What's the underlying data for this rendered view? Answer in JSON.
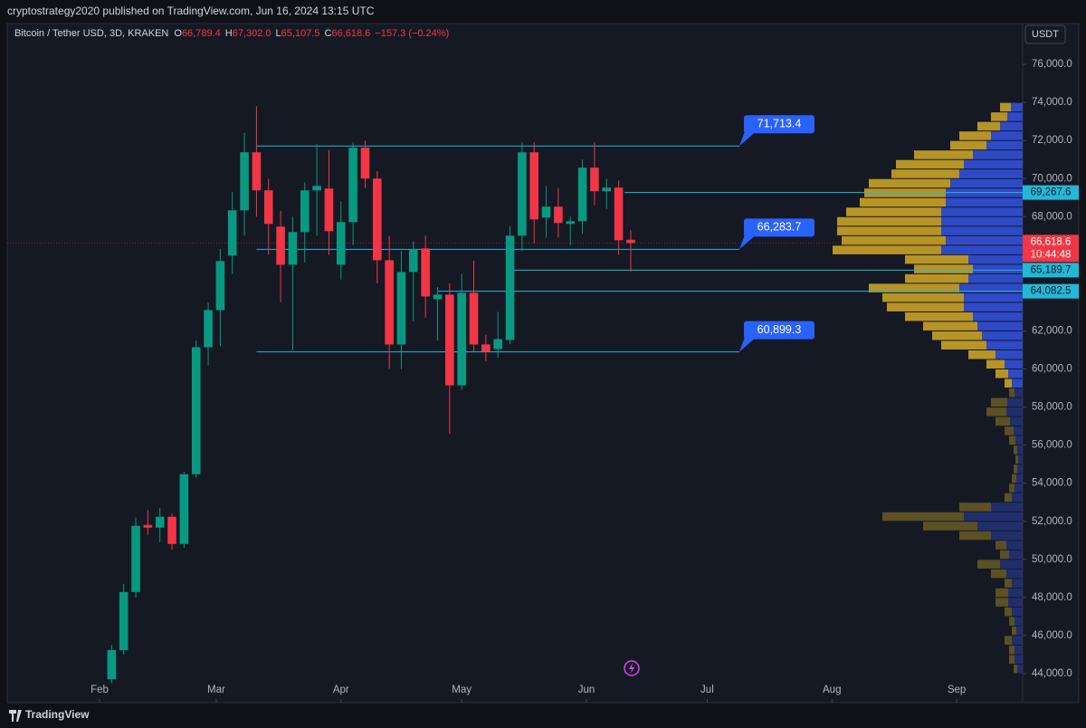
{
  "header": {
    "publisher": "cryptostrategy2020 published on TradingView.com, Jun 16, 2024 13:15 UTC",
    "logo": "TradingView",
    "currency": "USDT"
  },
  "chart_data": {
    "type": "candlestick",
    "legend": {
      "symbol": "Bitcoin / Tether USD, 3D, KRAKEN",
      "fields": [
        {
          "key": "O",
          "value": "66,789.4"
        },
        {
          "key": "H",
          "value": "67,302.0"
        },
        {
          "key": "L",
          "value": "65,107.5"
        },
        {
          "key": "C",
          "value": "66,618.6"
        }
      ],
      "change": "−157.3 (−0.24%)"
    },
    "up_color": "#089981",
    "down_color": "#f23645",
    "x": [
      34,
      37,
      40,
      43,
      46,
      49,
      52,
      55,
      58,
      61,
      64,
      67,
      70,
      73,
      76,
      79,
      82,
      85,
      88,
      91,
      94,
      97,
      100,
      103,
      106,
      109,
      112,
      115,
      118,
      121,
      124,
      127,
      130,
      133,
      136,
      139,
      142,
      145,
      148,
      151,
      154,
      157,
      160,
      163
    ],
    "open": [
      43700,
      45238,
      48286,
      51810,
      51667,
      52238,
      50810,
      54476,
      61143,
      63095,
      65952,
      68333,
      71381,
      69381,
      67476,
      65476,
      67190,
      69381,
      69476,
      65476,
      67714,
      71619,
      70000,
      65714,
      61286,
      65095,
      66333,
      63667,
      63905,
      59143,
      64000,
      61290,
      61048,
      61524,
      67000,
      71381,
      67952,
      68524,
      67619,
      67762,
      70571,
      69333,
      69524,
      66789.4
    ],
    "high": [
      45500,
      48700,
      52200,
      52600,
      52700,
      52400,
      54600,
      61500,
      63500,
      66300,
      69300,
      72400,
      73800,
      70000,
      68300,
      68000,
      69800,
      71800,
      71500,
      68800,
      71900,
      72000,
      70400,
      67000,
      66200,
      66700,
      67000,
      64300,
      64500,
      65000,
      65700,
      61800,
      63000,
      67500,
      71900,
      71900,
      69600,
      69500,
      68000,
      71000,
      71900,
      70000,
      69900,
      67302.0
    ],
    "low": [
      43500,
      45000,
      48000,
      51300,
      50900,
      50500,
      50600,
      54300,
      60200,
      61200,
      65000,
      67000,
      68000,
      66000,
      63500,
      61000,
      65600,
      67000,
      66000,
      64700,
      66500,
      69500,
      64500,
      60000,
      60000,
      62500,
      62700,
      61500,
      56600,
      58900,
      60900,
      60400,
      60600,
      61300,
      66200,
      66600,
      66900,
      66900,
      66500,
      67100,
      68600,
      68400,
      66000,
      65107.5
    ],
    "close": [
      45238,
      48286,
      51762,
      51667,
      52238,
      50810,
      54476,
      61143,
      63095,
      65667,
      68333,
      71381,
      69381,
      67619,
      65476,
      67190,
      69381,
      69619,
      67238,
      67714,
      71619,
      70000,
      65714,
      61286,
      65095,
      66286,
      63810,
      63905,
      59143,
      64000,
      61286,
      60905,
      61571,
      67000,
      71381,
      67857,
      68524,
      67667,
      67762,
      70571,
      69333,
      69524,
      66762,
      66618.6
    ],
    "xlim": [
      8.06,
      260.4
    ],
    "xticks": [
      {
        "value": 31,
        "label": "Feb"
      },
      {
        "value": 60,
        "label": "Mar"
      },
      {
        "value": 91,
        "label": "Apr"
      },
      {
        "value": 121,
        "label": "May"
      },
      {
        "value": 152,
        "label": "Jun"
      },
      {
        "value": 182,
        "label": "Jul"
      },
      {
        "value": 213,
        "label": "Aug"
      },
      {
        "value": 244,
        "label": "Sep"
      }
    ],
    "ylim": [
      42476,
      78143
    ],
    "yticks": [
      {
        "value": 44000,
        "label": "44,000.0"
      },
      {
        "value": 46000,
        "label": "46,000.0"
      },
      {
        "value": 48000,
        "label": "48,000.0"
      },
      {
        "value": 50000,
        "label": "50,000.0"
      },
      {
        "value": 52000,
        "label": "52,000.0"
      },
      {
        "value": 54000,
        "label": "54,000.0"
      },
      {
        "value": 56000,
        "label": "56,000.0"
      },
      {
        "value": 58000,
        "label": "58,000.0"
      },
      {
        "value": 60000,
        "label": "60,000.0"
      },
      {
        "value": 62000,
        "label": "62,000.0"
      },
      {
        "value": 64000,
        "label": "64,000.0"
      },
      {
        "value": 66000,
        "label": "66,000.0"
      },
      {
        "value": 68000,
        "label": "68,000.0"
      },
      {
        "value": 70000,
        "label": "70,000.0"
      },
      {
        "value": 72000,
        "label": "72,000.0"
      },
      {
        "value": 74000,
        "label": "74,000.0"
      },
      {
        "value": 76000,
        "label": "76,000.0"
      }
    ],
    "grid": false,
    "callout_lines": [
      {
        "value": 71713.4,
        "label": "71,713.4",
        "start": 70,
        "end": 190
      },
      {
        "value": 66283.7,
        "label": "66,283.7",
        "start": 70,
        "end": 190
      },
      {
        "value": 60899.3,
        "label": "60,899.3",
        "start": 70,
        "end": 190
      }
    ],
    "callout_color": "#2962ff",
    "line_color": "#22b8d8",
    "axis_lines": [
      {
        "value": 69267.6,
        "label": "69,267.6",
        "start": 161.5
      },
      {
        "value": 65189.7,
        "label": "65,189.7",
        "start": 134
      },
      {
        "value": 64082.5,
        "label": "64,082.5",
        "start": 115
      }
    ],
    "last_price": {
      "value": 66618.6,
      "label": "66,618.6",
      "countdown": "10:44:48"
    },
    "volume_profile": {
      "step": 500,
      "up_color": "#c9a227",
      "down_color": "#3150d8",
      "value_area": [
        59000,
        73500
      ],
      "levels": [
        44000,
        44500,
        45000,
        45500,
        46000,
        46500,
        47000,
        47500,
        48000,
        48500,
        49000,
        49500,
        50000,
        50500,
        51000,
        51500,
        52000,
        52500,
        53000,
        53500,
        54000,
        54500,
        55000,
        55500,
        56000,
        56500,
        57000,
        57500,
        58000,
        58500,
        59000,
        59500,
        60000,
        60500,
        61000,
        61500,
        62000,
        62500,
        63000,
        63500,
        64000,
        64500,
        65000,
        65500,
        66000,
        66500,
        67000,
        67500,
        68000,
        68500,
        69000,
        69500,
        70000,
        70500,
        71000,
        71500,
        72000,
        72500,
        73000,
        73500
      ],
      "up": [
        4,
        6,
        6,
        8,
        5,
        6,
        8,
        14,
        14,
        8,
        17,
        25,
        10,
        12,
        35,
        60,
        90,
        35,
        8,
        6,
        5,
        4,
        3,
        4,
        7,
        10,
        16,
        22,
        18,
        6,
        8,
        14,
        20,
        30,
        50,
        55,
        60,
        75,
        85,
        90,
        100,
        70,
        65,
        70,
        120,
        115,
        115,
        115,
        105,
        95,
        90,
        90,
        75,
        75,
        65,
        40,
        35,
        25,
        18,
        12
      ],
      "down": [
        6,
        9,
        9,
        12,
        7,
        9,
        12,
        16,
        16,
        12,
        18,
        25,
        15,
        18,
        35,
        50,
        65,
        35,
        12,
        9,
        7,
        6,
        5,
        6,
        8,
        10,
        14,
        18,
        17,
        9,
        12,
        16,
        20,
        30,
        40,
        45,
        50,
        55,
        65,
        65,
        70,
        60,
        55,
        60,
        90,
        85,
        90,
        90,
        90,
        85,
        85,
        80,
        70,
        65,
        55,
        40,
        35,
        25,
        17,
        13
      ]
    }
  }
}
